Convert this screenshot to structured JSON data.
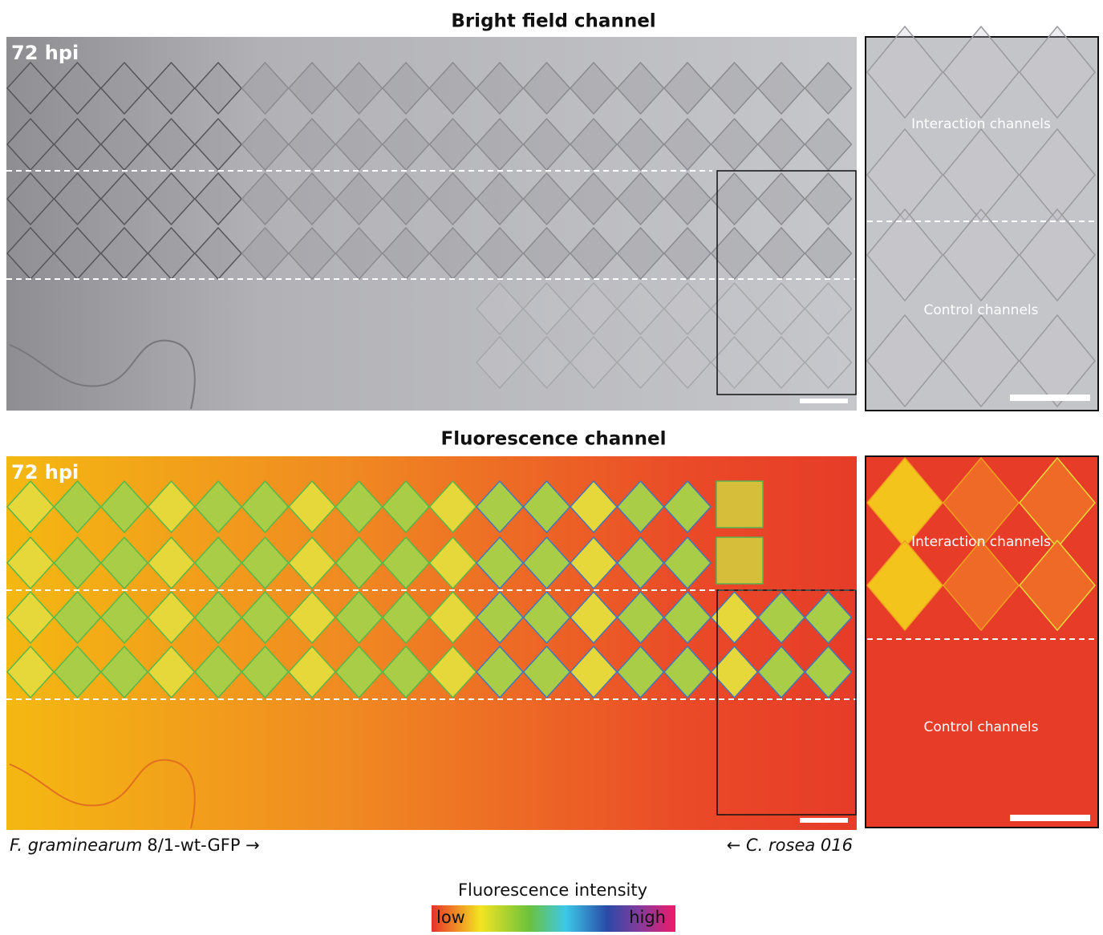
{
  "panels": [
    {
      "title": "Bright field channel",
      "timepoint": "72 hpi",
      "inset_labels": [
        "Interaction channels",
        "Control channels"
      ]
    },
    {
      "title": "Fluorescence channel",
      "timepoint": "72 hpi",
      "inset_labels": [
        "Interaction channels",
        "Control channels"
      ]
    }
  ],
  "captions": {
    "left": {
      "species": "F. graminearum",
      "strain": "8/1-wt-GFP →"
    },
    "right": "← C. rosea 016"
  },
  "colorbar": {
    "title": "Fluorescence intensity",
    "low": "low",
    "high": "high"
  }
}
